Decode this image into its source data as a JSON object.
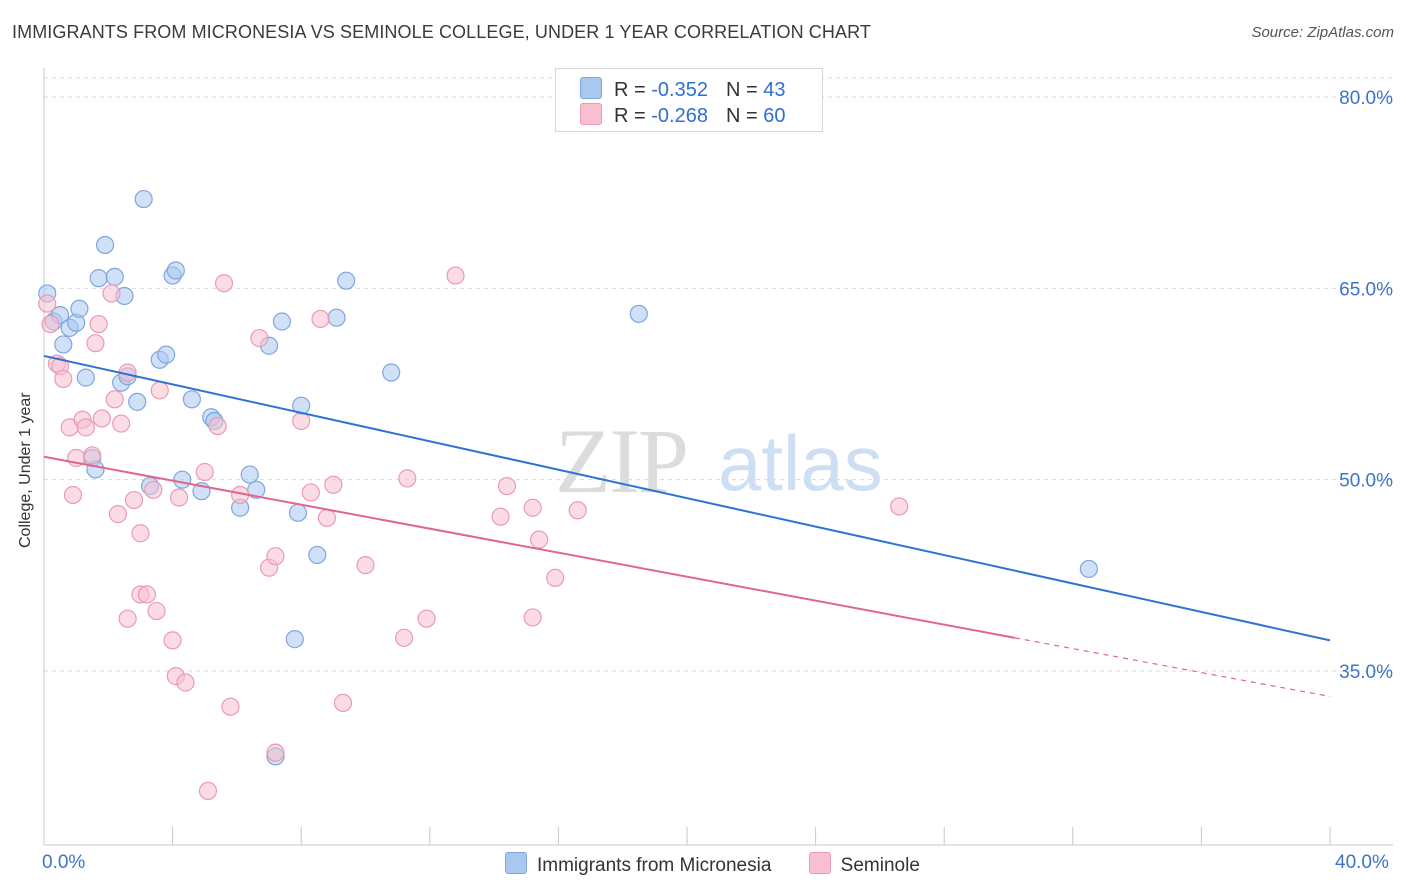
{
  "title": "IMMIGRANTS FROM MICRONESIA VS SEMINOLE COLLEGE, UNDER 1 YEAR CORRELATION CHART",
  "source": "Source: ZipAtlas.com",
  "watermark": {
    "zip": "ZIP",
    "atlas": "atlas"
  },
  "legend": {
    "rows": [
      {
        "r_label": "R = ",
        "r_value": "-0.352",
        "n_label": "N = ",
        "n_value": "43",
        "color": "#a9c8f0"
      },
      {
        "r_label": "R = ",
        "r_value": "-0.268",
        "n_label": "N = ",
        "n_value": "60",
        "color": "#f7bfd0"
      }
    ]
  },
  "bottom_legend": [
    {
      "label": "Immigrants from Micronesia",
      "color": "#a9c8f0"
    },
    {
      "label": "Seminole",
      "color": "#f7bfd0"
    }
  ],
  "colors": {
    "blue": "#2f73d2",
    "pink": "#e0668f",
    "blue_fill": "#a9c8f0",
    "pink_fill": "#f7bfd0",
    "grid": "#d9d9d9",
    "tick_label": "#3d74c8"
  },
  "chart_data": {
    "type": "scatter",
    "title": "IMMIGRANTS FROM MICRONESIA VS SEMINOLE COLLEGE, UNDER 1 YEAR CORRELATION CHART",
    "xlabel": "",
    "ylabel": "College, Under 1 year",
    "xlim": [
      0,
      40
    ],
    "ylim": [
      20,
      85
    ],
    "x_tick_labels": [
      "0.0%",
      "40.0%"
    ],
    "y_ticks": [
      35,
      50,
      65,
      80
    ],
    "y_tick_labels": [
      "35.0%",
      "50.0%",
      "65.0%",
      "80.0%"
    ],
    "grid": true,
    "legend_position": "top-center",
    "series": [
      {
        "name": "Immigrants from Micronesia",
        "color": "#2f73d2",
        "points": [
          [
            0.1,
            64.6
          ],
          [
            0.3,
            62.4
          ],
          [
            0.5,
            62.9
          ],
          [
            0.6,
            60.6
          ],
          [
            0.8,
            61.9
          ],
          [
            1.0,
            62.3
          ],
          [
            1.1,
            63.4
          ],
          [
            1.3,
            58.0
          ],
          [
            1.5,
            51.7
          ],
          [
            1.6,
            50.8
          ],
          [
            1.7,
            65.8
          ],
          [
            1.9,
            68.4
          ],
          [
            2.2,
            65.9
          ],
          [
            2.4,
            57.6
          ],
          [
            2.5,
            64.4
          ],
          [
            2.6,
            58.1
          ],
          [
            2.9,
            56.1
          ],
          [
            3.1,
            72.0
          ],
          [
            3.3,
            49.5
          ],
          [
            3.6,
            59.4
          ],
          [
            3.8,
            59.8
          ],
          [
            4.0,
            66.0
          ],
          [
            4.1,
            66.4
          ],
          [
            4.3,
            50.0
          ],
          [
            4.6,
            56.3
          ],
          [
            4.9,
            49.1
          ],
          [
            5.2,
            54.9
          ],
          [
            5.3,
            54.6
          ],
          [
            6.1,
            47.8
          ],
          [
            6.4,
            50.4
          ],
          [
            6.6,
            49.2
          ],
          [
            7.0,
            60.5
          ],
          [
            7.4,
            62.4
          ],
          [
            7.8,
            37.5
          ],
          [
            7.9,
            47.4
          ],
          [
            8.0,
            55.8
          ],
          [
            8.5,
            44.1
          ],
          [
            9.1,
            62.7
          ],
          [
            9.4,
            65.6
          ],
          [
            10.8,
            58.4
          ],
          [
            7.2,
            28.3
          ],
          [
            18.5,
            63.0
          ],
          [
            32.5,
            43.0
          ]
        ],
        "trend": {
          "x": [
            0,
            40
          ],
          "y": [
            59.7,
            37.4
          ]
        }
      },
      {
        "name": "Seminole",
        "color": "#e0668f",
        "points": [
          [
            0.1,
            63.8
          ],
          [
            0.2,
            62.2
          ],
          [
            0.4,
            59.1
          ],
          [
            0.5,
            58.9
          ],
          [
            0.6,
            57.9
          ],
          [
            0.8,
            54.1
          ],
          [
            0.9,
            48.8
          ],
          [
            1.0,
            51.7
          ],
          [
            1.2,
            54.7
          ],
          [
            1.3,
            54.1
          ],
          [
            1.5,
            51.9
          ],
          [
            1.6,
            60.7
          ],
          [
            1.7,
            62.2
          ],
          [
            1.8,
            54.8
          ],
          [
            2.1,
            64.6
          ],
          [
            2.2,
            56.3
          ],
          [
            2.3,
            47.3
          ],
          [
            2.4,
            54.4
          ],
          [
            2.6,
            58.4
          ],
          [
            2.6,
            39.1
          ],
          [
            2.8,
            48.4
          ],
          [
            3.0,
            41.0
          ],
          [
            3.0,
            45.8
          ],
          [
            3.2,
            41.0
          ],
          [
            3.4,
            49.2
          ],
          [
            3.5,
            39.7
          ],
          [
            3.6,
            57.0
          ],
          [
            4.0,
            37.4
          ],
          [
            4.1,
            34.6
          ],
          [
            4.2,
            48.6
          ],
          [
            4.4,
            34.1
          ],
          [
            5.0,
            50.6
          ],
          [
            5.1,
            25.6
          ],
          [
            5.4,
            54.2
          ],
          [
            5.6,
            65.4
          ],
          [
            5.8,
            32.2
          ],
          [
            6.1,
            48.8
          ],
          [
            6.7,
            61.1
          ],
          [
            7.0,
            43.1
          ],
          [
            7.2,
            44.0
          ],
          [
            7.2,
            28.6
          ],
          [
            8.0,
            54.6
          ],
          [
            8.3,
            49.0
          ],
          [
            8.6,
            62.6
          ],
          [
            8.8,
            47.0
          ],
          [
            9.0,
            49.6
          ],
          [
            9.3,
            32.5
          ],
          [
            10.0,
            43.3
          ],
          [
            11.2,
            37.6
          ],
          [
            11.3,
            50.1
          ],
          [
            11.9,
            39.1
          ],
          [
            12.8,
            66.0
          ],
          [
            14.2,
            47.1
          ],
          [
            14.4,
            49.5
          ],
          [
            15.2,
            39.2
          ],
          [
            15.2,
            47.8
          ],
          [
            15.4,
            45.3
          ],
          [
            15.9,
            42.3
          ],
          [
            16.6,
            47.6
          ],
          [
            26.6,
            47.9
          ]
        ],
        "trend": {
          "x": [
            0,
            30.2
          ],
          "y": [
            51.8,
            37.6
          ]
        },
        "trend_dashed": {
          "x": [
            30.2,
            40
          ],
          "y": [
            37.6,
            33.0
          ]
        }
      }
    ]
  }
}
